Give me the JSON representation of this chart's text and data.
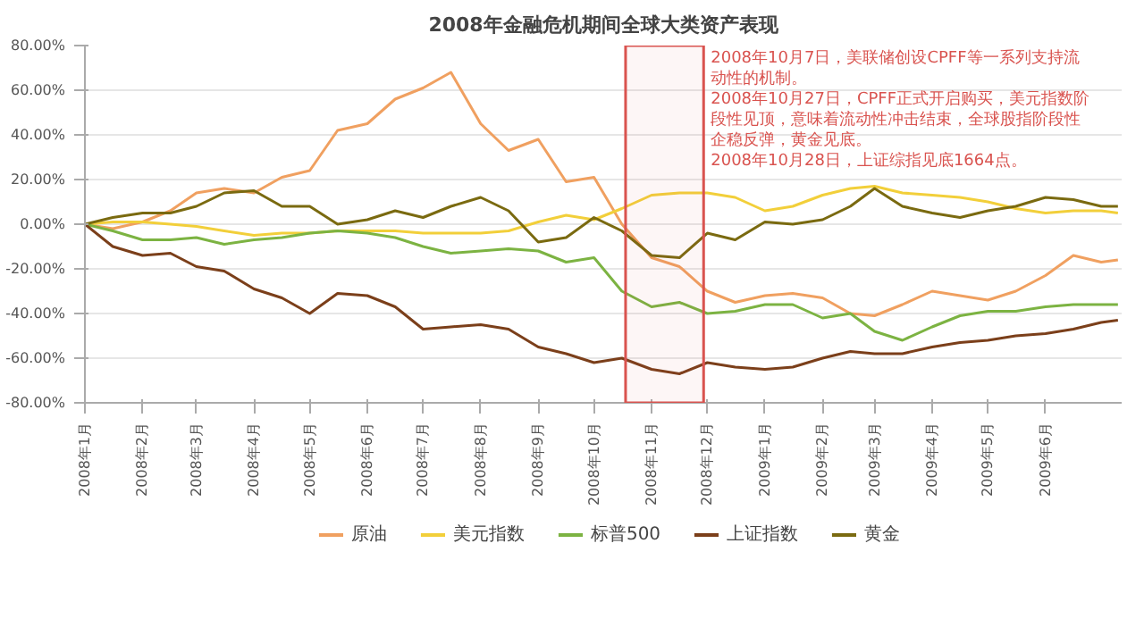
{
  "chart_data": {
    "type": "line",
    "title": "2008年金融危机期间全球大类资产表现",
    "x": [
      "2008-01-01",
      "2008-01-16",
      "2008-02-01",
      "2008-02-16",
      "2008-03-01",
      "2008-03-16",
      "2008-04-01",
      "2008-04-16",
      "2008-05-01",
      "2008-05-16",
      "2008-06-01",
      "2008-06-16",
      "2008-07-01",
      "2008-07-16",
      "2008-08-01",
      "2008-08-16",
      "2008-09-01",
      "2008-09-16",
      "2008-10-01",
      "2008-10-16",
      "2008-11-01",
      "2008-11-16",
      "2008-12-01",
      "2008-12-16",
      "2009-01-01",
      "2009-01-16",
      "2009-02-01",
      "2009-02-16",
      "2009-03-01",
      "2009-03-16",
      "2009-04-01",
      "2009-04-16",
      "2009-05-01",
      "2009-05-16",
      "2009-06-01",
      "2009-06-16",
      "2009-07-01",
      "2009-07-10"
    ],
    "series": [
      {
        "name": "原油",
        "color": "#f0a060",
        "values": [
          0,
          -2,
          1,
          6,
          14,
          16,
          14,
          21,
          24,
          42,
          45,
          56,
          61,
          68,
          45,
          33,
          38,
          19,
          21,
          0,
          -15,
          -19,
          -30,
          -35,
          -32,
          -31,
          -33,
          -40,
          -41,
          -36,
          -30,
          -32,
          -34,
          -30,
          -23,
          -14,
          -17,
          -16
        ]
      },
      {
        "name": "美元指数",
        "color": "#f2cf3a",
        "values": [
          0,
          1,
          1,
          0,
          -1,
          -3,
          -5,
          -4,
          -4,
          -3,
          -3,
          -3,
          -4,
          -4,
          -4,
          -3,
          1,
          4,
          2,
          7,
          13,
          14,
          14,
          12,
          6,
          8,
          13,
          16,
          17,
          14,
          13,
          12,
          10,
          7,
          5,
          6,
          6,
          5
        ]
      },
      {
        "name": "标普500",
        "color": "#7cb342",
        "values": [
          0,
          -3,
          -7,
          -7,
          -6,
          -9,
          -7,
          -6,
          -4,
          -3,
          -4,
          -6,
          -10,
          -13,
          -12,
          -11,
          -12,
          -17,
          -15,
          -30,
          -37,
          -35,
          -40,
          -39,
          -36,
          -36,
          -42,
          -40,
          -48,
          -52,
          -46,
          -41,
          -39,
          -39,
          -37,
          -36,
          -36,
          -36
        ]
      },
      {
        "name": "上证指数",
        "color": "#7b3f1a",
        "values": [
          0,
          -10,
          -14,
          -13,
          -19,
          -21,
          -29,
          -33,
          -40,
          -31,
          -32,
          -37,
          -47,
          -46,
          -45,
          -47,
          -55,
          -58,
          -62,
          -60,
          -65,
          -67,
          -62,
          -64,
          -65,
          -64,
          -60,
          -57,
          -58,
          -58,
          -55,
          -53,
          -52,
          -50,
          -49,
          -47,
          -44,
          -43
        ]
      },
      {
        "name": "黄金",
        "color": "#7a6a10",
        "values": [
          0,
          3,
          5,
          5,
          8,
          14,
          15,
          8,
          8,
          0,
          2,
          6,
          3,
          8,
          12,
          6,
          -8,
          -6,
          3,
          -3,
          -14,
          -15,
          -4,
          -7,
          1,
          0,
          2,
          8,
          16,
          8,
          5,
          3,
          6,
          8,
          12,
          11,
          8,
          8
        ]
      }
    ],
    "ylim": [
      -80,
      80
    ],
    "yticks": [
      {
        "value": -80,
        "label": "-80.00%"
      },
      {
        "value": -60,
        "label": "-60.00%"
      },
      {
        "value": -40,
        "label": "-40.00%"
      },
      {
        "value": -20,
        "label": "-20.00%"
      },
      {
        "value": 0,
        "label": "0.00%"
      },
      {
        "value": 20,
        "label": "20.00%"
      },
      {
        "value": 40,
        "label": "40.00%"
      },
      {
        "value": 60,
        "label": "60.00%"
      },
      {
        "value": 80,
        "label": "80.00%"
      }
    ],
    "xlim": [
      "2008-01-01",
      "2009-07-12"
    ],
    "xticks": [
      {
        "value": "2008-01-01",
        "label": "2008年1月"
      },
      {
        "value": "2008-02-01",
        "label": "2008年2月"
      },
      {
        "value": "2008-03-01",
        "label": "2008年3月"
      },
      {
        "value": "2008-04-01",
        "label": "2008年4月"
      },
      {
        "value": "2008-05-01",
        "label": "2008年5月"
      },
      {
        "value": "2008-06-01",
        "label": "2008年6月"
      },
      {
        "value": "2008-07-01",
        "label": "2008年7月"
      },
      {
        "value": "2008-08-01",
        "label": "2008年8月"
      },
      {
        "value": "2008-09-01",
        "label": "2008年9月"
      },
      {
        "value": "2008-10-01",
        "label": "2008年10月"
      },
      {
        "value": "2008-11-01",
        "label": "2008年11月"
      },
      {
        "value": "2008-12-01",
        "label": "2008年12月"
      },
      {
        "value": "2009-01-01",
        "label": "2009年1月"
      },
      {
        "value": "2009-02-01",
        "label": "2009年2月"
      },
      {
        "value": "2009-03-01",
        "label": "2009年3月"
      },
      {
        "value": "2009-04-01",
        "label": "2009年4月"
      },
      {
        "value": "2009-05-01",
        "label": "2009年5月"
      },
      {
        "value": "2009-06-01",
        "label": "2009年6月"
      }
    ],
    "bands": [
      {
        "axis": "x",
        "from": "2008-10-18",
        "to": "2008-11-29",
        "color": "#d9534f"
      }
    ],
    "annotations": [
      "2008年10月7日，美联储创设CPFF等一系列支持流动性的机制。",
      "2008年10月27日，CPFF正式开启购买，美元指数阶段性见顶，意味着流动性冲击结束，全球股指阶段性企稳反弹，黄金见底。",
      "2008年10月28日，上证综指见底1664点。"
    ],
    "grid": "y",
    "legend": "bottom",
    "marker": "none",
    "line_style": "solid"
  }
}
